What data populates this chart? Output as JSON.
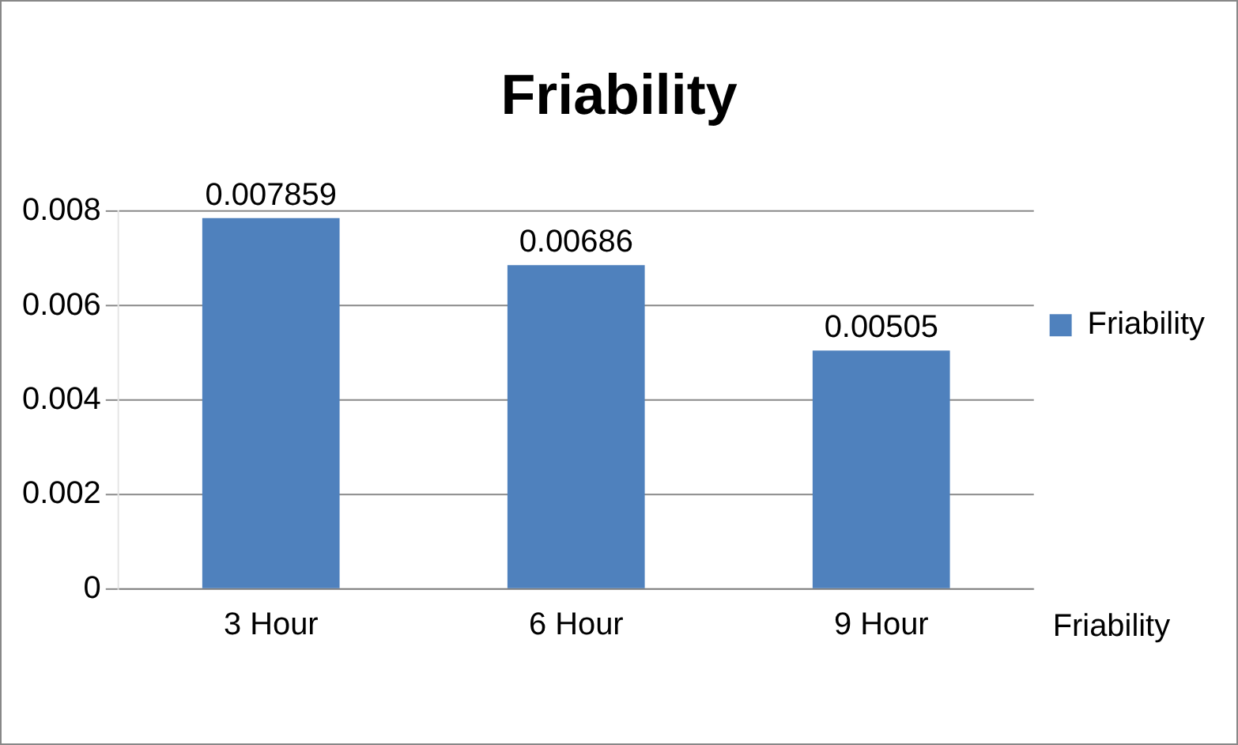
{
  "chart_data": {
    "type": "bar",
    "title": "Friability",
    "categories": [
      "3 Hour",
      "6 Hour",
      "9 Hour"
    ],
    "series": [
      {
        "name": "Friability",
        "color": "#4f81bd",
        "values": [
          0.007859,
          0.00686,
          0.00505
        ]
      }
    ],
    "ylim": [
      0,
      0.008
    ],
    "yticks": [
      0,
      0.002,
      0.004,
      0.006,
      0.008
    ],
    "grid": "y",
    "legend": "right",
    "data_labels": true,
    "annotations": [
      "Friability"
    ]
  }
}
